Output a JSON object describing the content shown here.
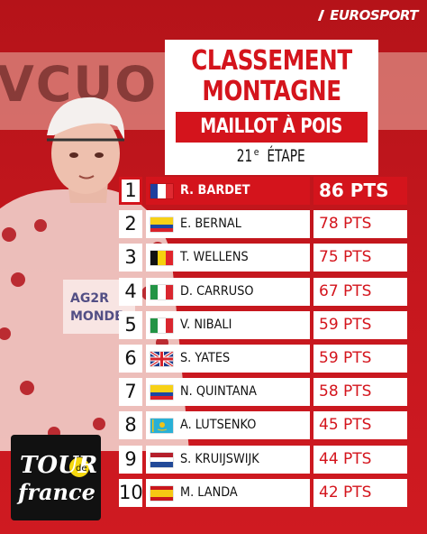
{
  "brand": "EUROSPORT",
  "title": {
    "line1": "CLASSEMENT",
    "line2": "MONTAGNE",
    "subtitle": "MAILLOT À POIS",
    "stage_num": "21",
    "stage_sup": "e",
    "stage_word": "ÉTAPE"
  },
  "background": {
    "banner_text": "VCUO YE"
  },
  "standings": [
    {
      "rank": "1",
      "name": "R. BARDET",
      "points": "86 PTS",
      "flag": "france-flag",
      "colors": [
        "#1f3f9e",
        "#ffffff",
        "#e02a31"
      ],
      "layout": "v"
    },
    {
      "rank": "2",
      "name": "E. BERNAL",
      "points": "78 PTS",
      "flag": "colombia-flag",
      "colors": [
        "#f7d116",
        "#1b47a3",
        "#d9222a"
      ],
      "layout": "h-col"
    },
    {
      "rank": "3",
      "name": "T. WELLENS",
      "points": "75 PTS",
      "flag": "belgium-flag",
      "colors": [
        "#111111",
        "#f5d10e",
        "#e0242b"
      ],
      "layout": "v"
    },
    {
      "rank": "4",
      "name": "D. CARRUSO",
      "points": "67 PTS",
      "flag": "italy-flag",
      "colors": [
        "#229445",
        "#ffffff",
        "#d9262f"
      ],
      "layout": "v"
    },
    {
      "rank": "5",
      "name": "V. NIBALI",
      "points": "59 PTS",
      "flag": "italy-flag",
      "colors": [
        "#229445",
        "#ffffff",
        "#d9262f"
      ],
      "layout": "v"
    },
    {
      "rank": "6",
      "name": "S. YATES",
      "points": "59 PTS",
      "flag": "uk-flag",
      "colors": [
        "#1d3a8a",
        "#ffffff",
        "#d6232b"
      ],
      "layout": "uk"
    },
    {
      "rank": "7",
      "name": "N. QUINTANA",
      "points": "58 PTS",
      "flag": "colombia-flag",
      "colors": [
        "#f7d116",
        "#1b47a3",
        "#d9222a"
      ],
      "layout": "h-col"
    },
    {
      "rank": "8",
      "name": "A. LUTSENKO",
      "points": "45 PTS",
      "flag": "kazakhstan-flag",
      "colors": [
        "#29b0d6",
        "#f2c316"
      ],
      "layout": "kz"
    },
    {
      "rank": "9",
      "name": "S. KRUIJSWIJK",
      "points": "44 PTS",
      "flag": "netherlands-flag",
      "colors": [
        "#b51f2b",
        "#ffffff",
        "#224a98"
      ],
      "layout": "h"
    },
    {
      "rank": "10",
      "name": "M. LANDA",
      "points": "42 PTS",
      "flag": "spain-flag",
      "colors": [
        "#c8161d",
        "#f6c813",
        "#c8161d"
      ],
      "layout": "es"
    }
  ],
  "tour_logo": {
    "line1": "TOUR",
    "line2": "de",
    "line3": "france"
  },
  "colors": {
    "accent": "#d4141c",
    "background": "#c8161d"
  }
}
